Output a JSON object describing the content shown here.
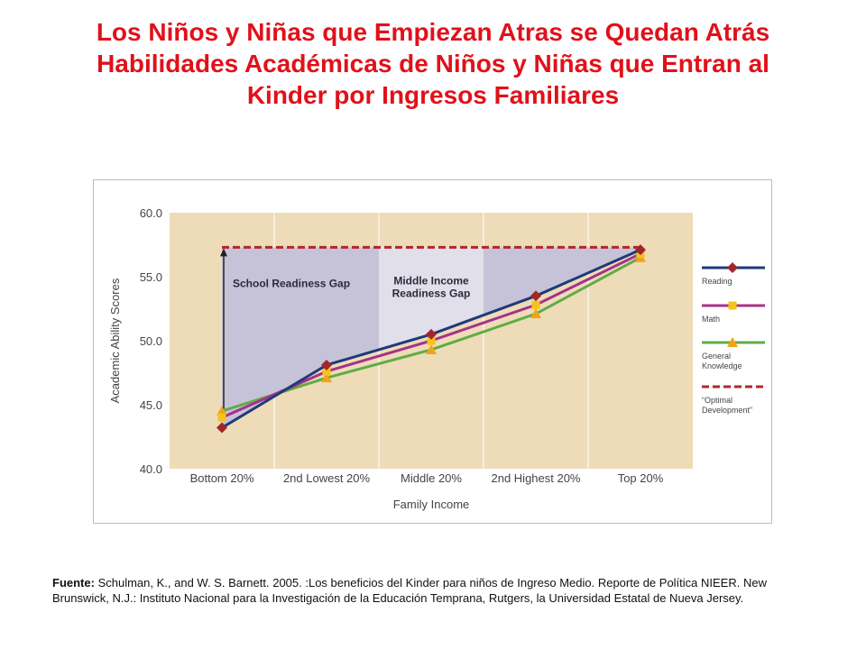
{
  "title": {
    "line1": "Los Niños y Niñas que Empiezan Atras se Quedan Atrás",
    "line2": "Habilidades Académicas de Niños y Niñas que Entran al",
    "line3": "Kinder por Ingresos Familiares"
  },
  "source": {
    "label": "Fuente:",
    "text": " Schulman, K., and W. S. Barnett. 2005. :Los beneficios del Kinder para niños de Ingreso Medio. Reporte de Política NIEER. New Brunswick, N.J.: Instituto Nacional para la Investigación de la Educación Temprana, Rutgers, la Universidad Estatal de Nueva Jersey."
  },
  "chart_data": {
    "type": "line",
    "xlabel": "Family Income",
    "ylabel": "Academic Ability Scores",
    "categories": [
      "Bottom 20%",
      "2nd Lowest 20%",
      "Middle 20%",
      "2nd Highest 20%",
      "Top 20%"
    ],
    "ylim": [
      40.0,
      60.0
    ],
    "yticks": [
      "40.0",
      "45.0",
      "50.0",
      "55.0",
      "60.0"
    ],
    "series": [
      {
        "name": "Reading",
        "color": "#1f3a7a",
        "marker": "diamond",
        "marker_color": "#a3262a",
        "values": [
          43.2,
          48.1,
          50.5,
          53.5,
          57.1
        ]
      },
      {
        "name": "Math",
        "color": "#a4338a",
        "marker": "square",
        "marker_color": "#f5c419",
        "values": [
          44.0,
          47.6,
          50.0,
          52.8,
          56.8
        ]
      },
      {
        "name": "General Knowledge",
        "color": "#5fac45",
        "marker": "triangle",
        "marker_color": "#f2a318",
        "values": [
          44.5,
          47.1,
          49.3,
          52.1,
          56.5
        ]
      }
    ],
    "optimal": {
      "name": "“Optimal Development”",
      "value": 57.3,
      "color": "#b0272d"
    },
    "annotations": [
      {
        "text": "School Readiness Gap"
      },
      {
        "text": "Middle Income Readiness Gap"
      }
    ],
    "legend_entries": [
      "Reading",
      "Math",
      "General Knowledge",
      "“Optimal Development”"
    ],
    "legend_position": "right",
    "colors": {
      "plot_bg": "#eedcb8",
      "gap_fill": "#c6c3d8",
      "mid_gap_fill": "#e1dfea"
    }
  }
}
